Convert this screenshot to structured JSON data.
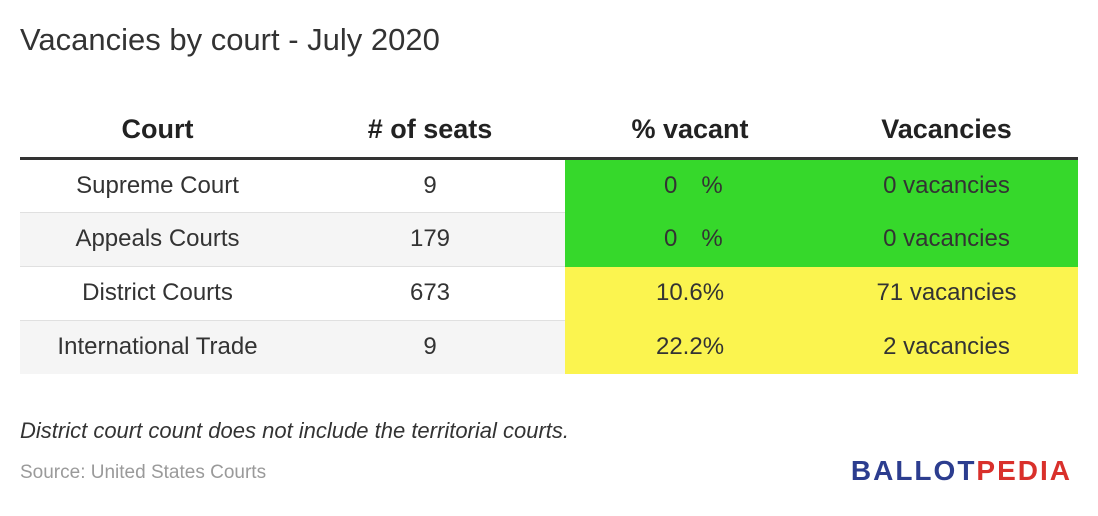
{
  "title": "Vacancies by court - July 2020",
  "chart_data": {
    "type": "table",
    "columns": [
      "Court",
      "# of seats",
      "% vacant",
      "Vacancies"
    ],
    "rows": [
      {
        "court": "Supreme Court",
        "seats": "9",
        "pct_value": "0",
        "pct_sign": "%",
        "pct_status": "green",
        "vacancies": "0 vacancies"
      },
      {
        "court": "Appeals Courts",
        "seats": "179",
        "pct_value": "0",
        "pct_sign": "%",
        "pct_status": "green",
        "vacancies": "0 vacancies"
      },
      {
        "court": "District Courts",
        "seats": "673",
        "pct_value": "10.6",
        "pct_sign": "%",
        "pct_status": "yellow",
        "vacancies": "71 vacancies"
      },
      {
        "court": "International Trade",
        "seats": "9",
        "pct_value": "22.2",
        "pct_sign": "%",
        "pct_status": "yellow",
        "vacancies": "2 vacancies"
      }
    ],
    "status_colors": {
      "green": "#36d82b",
      "yellow": "#fbf44f"
    }
  },
  "footnote": "District court count does not include the territorial courts.",
  "source": "Source: United States Courts",
  "logo": {
    "part1": "BALLOT",
    "part2": "PEDIA",
    "color1": "#2c3d8f",
    "color2": "#d9302b"
  }
}
